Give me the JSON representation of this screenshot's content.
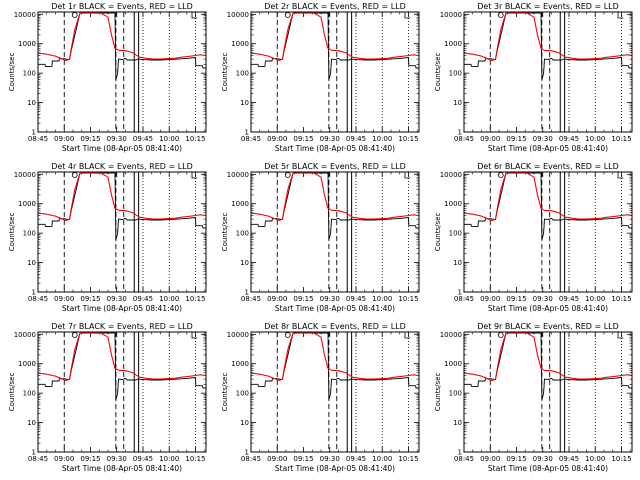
{
  "chart_data": {
    "type": "line",
    "panel_titles": [
      "Det 1r BLACK = Events, RED = LLD",
      "Det 2r BLACK = Events, RED = LLD",
      "Det 3r BLACK = Events, RED = LLD",
      "Det 4r BLACK = Events, RED = LLD",
      "Det 5r BLACK = Events, RED = LLD",
      "Det 6r BLACK = Events, RED = LLD",
      "Det 7r BLACK = Events, RED = LLD",
      "Det 8r BLACK = Events, RED = LLD",
      "Det 9r BLACK = Events, RED = LLD"
    ],
    "xlabel": "Start Time (08-Apr-05 08:41:40)",
    "ylabel": "Counts/sec",
    "x_ticks": [
      "08:45",
      "09:00",
      "09:15",
      "09:30",
      "09:45",
      "10:00",
      "10:15"
    ],
    "y_ticks": [
      "1",
      "10",
      "100",
      "1000",
      "10000"
    ],
    "x_tick_minutes": [
      0,
      15,
      30,
      45,
      60,
      75,
      90
    ],
    "xlim_minutes": [
      0,
      96
    ],
    "ylim": [
      1,
      12000
    ],
    "y_scale": "log",
    "colors": {
      "events": "#000000",
      "lld": "#ff0000"
    },
    "dashed_lines_minutes": [
      15,
      44.5,
      49
    ],
    "solid_lines_minutes": [
      55,
      57.5
    ],
    "dotted_lines_minutes": [
      60,
      75,
      90
    ],
    "series": [
      {
        "name": "Events",
        "color": "#000000",
        "x": [
          0,
          4,
          4.2,
          8,
          8.2,
          12,
          12.2,
          15,
          16,
          18,
          19,
          24,
          30,
          38,
          42,
          44,
          44.5,
          45.5,
          46,
          48,
          50,
          51,
          55,
          56,
          57,
          60,
          65,
          70,
          75,
          80,
          86,
          90,
          90.2,
          94,
          94.3,
          96
        ],
        "y": [
          200,
          200,
          170,
          170,
          260,
          260,
          310,
          310,
          300,
          290,
          600,
          11000,
          11000,
          11000,
          11000,
          11000,
          60,
          100,
          300,
          290,
          320,
          280,
          280,
          280,
          300,
          290,
          280,
          280,
          290,
          300,
          320,
          340,
          180,
          180,
          150,
          150
        ]
      },
      {
        "name": "LLD",
        "color": "#ff0000",
        "x": [
          0,
          5,
          10,
          14,
          16,
          18,
          19,
          21,
          24,
          30,
          36,
          40,
          42,
          44,
          46,
          50,
          54,
          58,
          62,
          66,
          70,
          74,
          78,
          82,
          86,
          90,
          93,
          96
        ],
        "y": [
          480,
          440,
          380,
          300,
          270,
          300,
          700,
          3000,
          11000,
          11000,
          11000,
          8000,
          2000,
          700,
          600,
          580,
          500,
          350,
          320,
          300,
          300,
          310,
          320,
          350,
          370,
          400,
          420,
          400
        ]
      }
    ]
  }
}
